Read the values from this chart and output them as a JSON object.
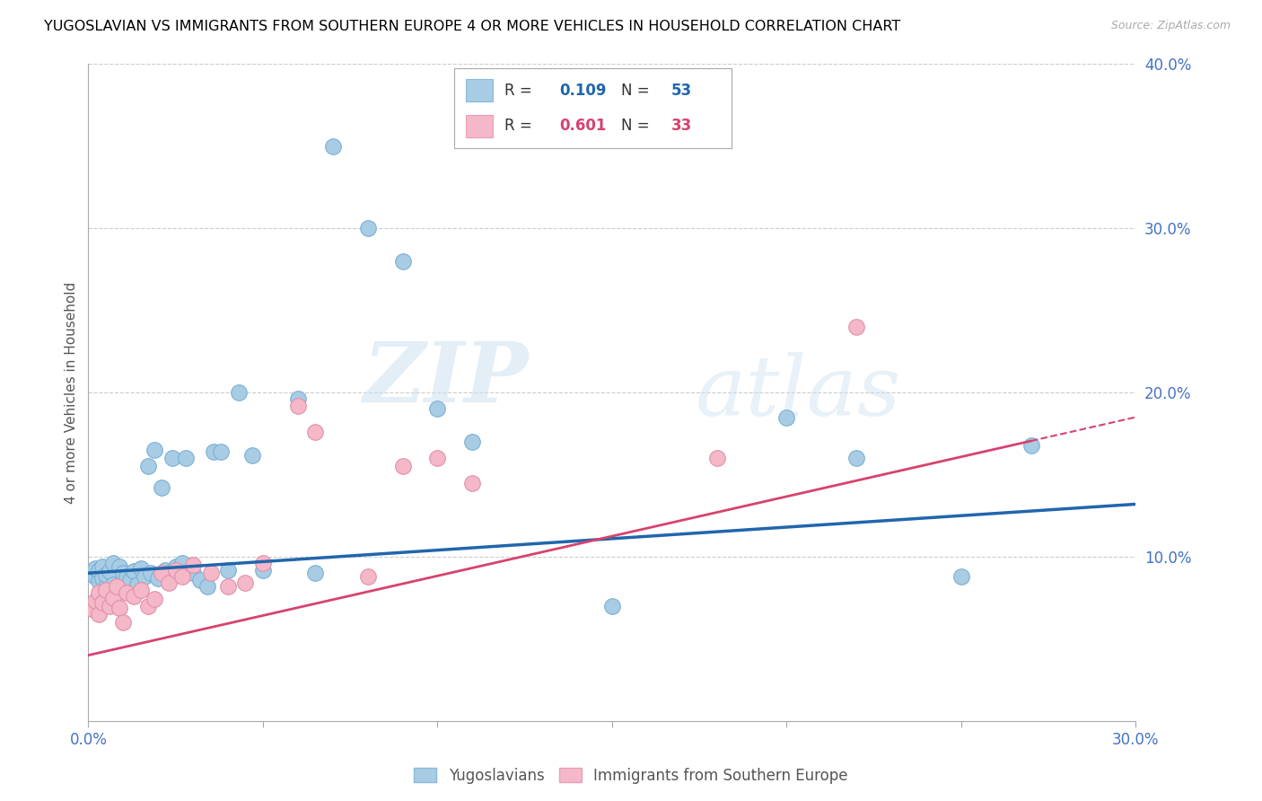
{
  "title": "YUGOSLAVIAN VS IMMIGRANTS FROM SOUTHERN EUROPE 4 OR MORE VEHICLES IN HOUSEHOLD CORRELATION CHART",
  "source": "Source: ZipAtlas.com",
  "ylabel": "4 or more Vehicles in Household",
  "x_min": 0.0,
  "x_max": 0.3,
  "y_min": 0.0,
  "y_max": 0.4,
  "x_ticks": [
    0.0,
    0.05,
    0.1,
    0.15,
    0.2,
    0.25,
    0.3
  ],
  "right_y_ticks": [
    0.1,
    0.2,
    0.3,
    0.4
  ],
  "right_y_tick_labels": [
    "10.0%",
    "20.0%",
    "30.0%",
    "40.0%"
  ],
  "color_blue": "#a8cce4",
  "color_pink": "#f4b8c8",
  "color_blue_line": "#2166ac",
  "color_pink_line": "#d6436e",
  "legend_r_blue": "0.109",
  "legend_n_blue": "53",
  "legend_r_pink": "0.601",
  "legend_n_pink": "33",
  "legend_label_blue": "Yugoslavians",
  "legend_label_pink": "Immigrants from Southern Europe",
  "watermark_zip": "ZIP",
  "watermark_atlas": "atlas",
  "blue_line_x0": 0.0,
  "blue_line_y0": 0.09,
  "blue_line_x1": 0.3,
  "blue_line_y1": 0.132,
  "pink_line_x0": 0.0,
  "pink_line_y0": 0.04,
  "pink_line_x1": 0.3,
  "pink_line_y1": 0.185,
  "pink_line_solid_end": 0.27,
  "blue_scatter_x": [
    0.001,
    0.002,
    0.002,
    0.003,
    0.003,
    0.004,
    0.004,
    0.005,
    0.005,
    0.006,
    0.007,
    0.007,
    0.008,
    0.009,
    0.01,
    0.011,
    0.012,
    0.013,
    0.014,
    0.015,
    0.016,
    0.017,
    0.018,
    0.019,
    0.02,
    0.021,
    0.022,
    0.023,
    0.024,
    0.025,
    0.027,
    0.028,
    0.03,
    0.032,
    0.034,
    0.036,
    0.038,
    0.04,
    0.043,
    0.047,
    0.05,
    0.06,
    0.065,
    0.07,
    0.08,
    0.09,
    0.1,
    0.11,
    0.15,
    0.2,
    0.22,
    0.25,
    0.27
  ],
  "blue_scatter_y": [
    0.09,
    0.088,
    0.093,
    0.085,
    0.092,
    0.087,
    0.094,
    0.082,
    0.089,
    0.091,
    0.083,
    0.096,
    0.078,
    0.094,
    0.09,
    0.088,
    0.086,
    0.091,
    0.083,
    0.093,
    0.088,
    0.155,
    0.09,
    0.165,
    0.087,
    0.142,
    0.092,
    0.09,
    0.16,
    0.094,
    0.096,
    0.16,
    0.09,
    0.086,
    0.082,
    0.164,
    0.164,
    0.092,
    0.2,
    0.162,
    0.092,
    0.196,
    0.09,
    0.35,
    0.3,
    0.28,
    0.19,
    0.17,
    0.07,
    0.185,
    0.16,
    0.088,
    0.168
  ],
  "pink_scatter_x": [
    0.001,
    0.002,
    0.003,
    0.003,
    0.004,
    0.005,
    0.006,
    0.007,
    0.008,
    0.009,
    0.01,
    0.011,
    0.013,
    0.015,
    0.017,
    0.019,
    0.021,
    0.023,
    0.025,
    0.027,
    0.03,
    0.035,
    0.04,
    0.045,
    0.05,
    0.06,
    0.065,
    0.08,
    0.09,
    0.1,
    0.11,
    0.18,
    0.22
  ],
  "pink_scatter_y": [
    0.068,
    0.073,
    0.065,
    0.078,
    0.072,
    0.08,
    0.07,
    0.075,
    0.082,
    0.069,
    0.06,
    0.078,
    0.076,
    0.08,
    0.07,
    0.074,
    0.09,
    0.084,
    0.092,
    0.088,
    0.095,
    0.09,
    0.082,
    0.084,
    0.096,
    0.192,
    0.176,
    0.088,
    0.155,
    0.16,
    0.145,
    0.16,
    0.24
  ]
}
